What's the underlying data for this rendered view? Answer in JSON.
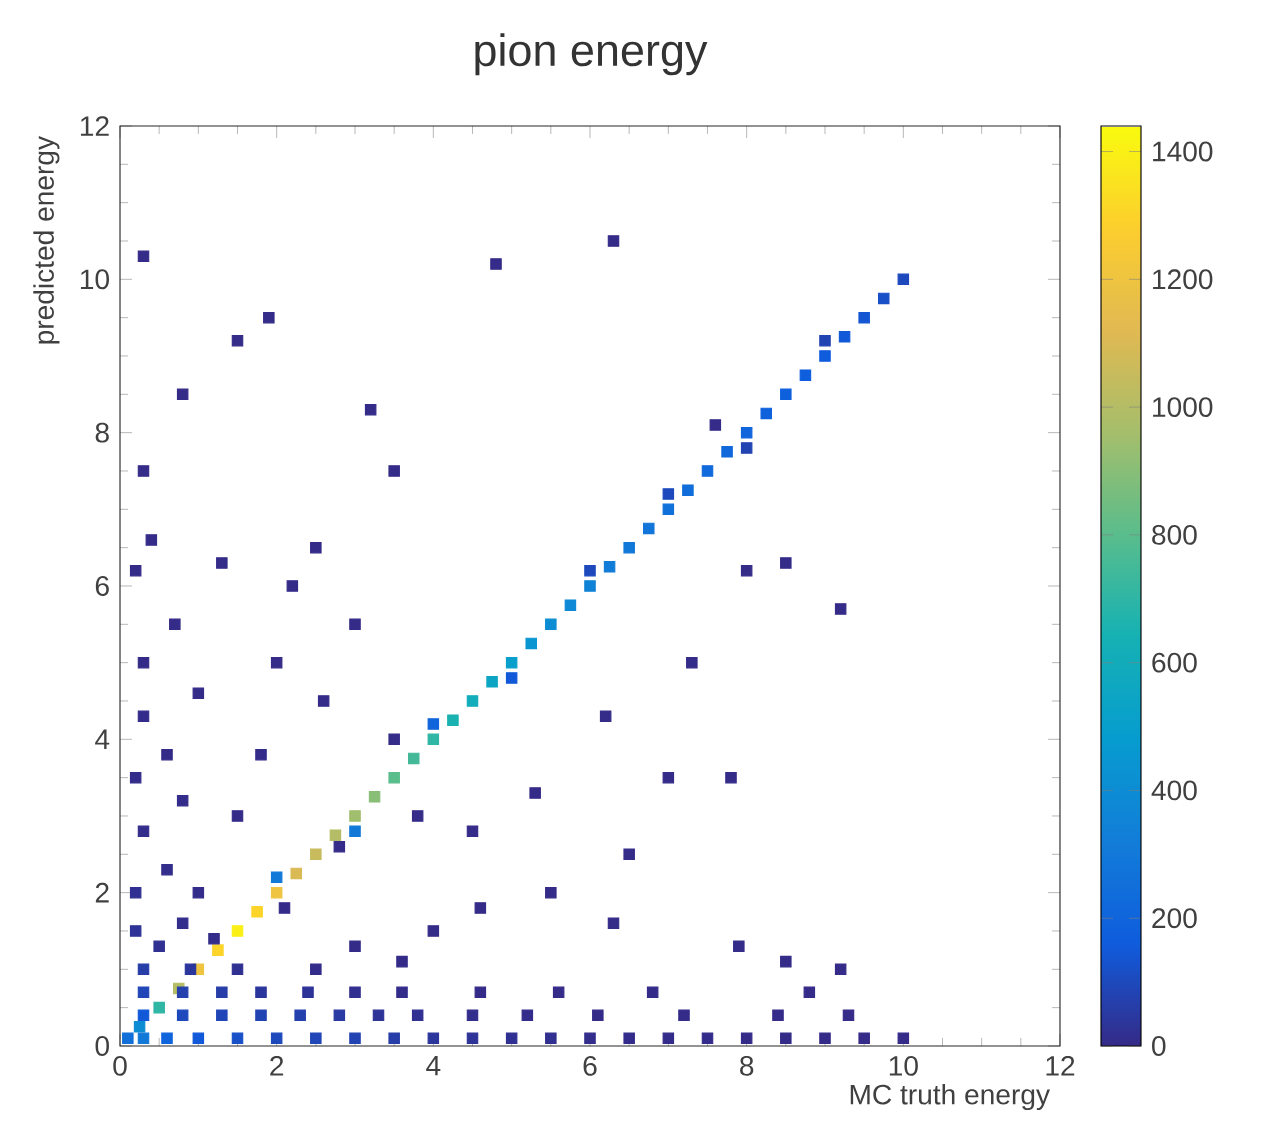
{
  "chart_data": {
    "type": "scatter",
    "title": "pion energy",
    "xlabel": "MC truth energy",
    "ylabel": "predicted energy",
    "xlim": [
      0,
      12
    ],
    "ylim": [
      0,
      12
    ],
    "xticks": [
      0,
      2,
      4,
      6,
      8,
      10,
      12
    ],
    "yticks": [
      0,
      2,
      4,
      6,
      8,
      10,
      12
    ],
    "clim": [
      0,
      1440
    ],
    "cticks": [
      0,
      200,
      400,
      600,
      800,
      1000,
      1200,
      1400
    ],
    "marker": "square",
    "x": [
      0.25,
      0.5,
      0.75,
      1.0,
      1.25,
      1.5,
      1.75,
      2.0,
      2.25,
      2.5,
      2.75,
      3.0,
      3.25,
      3.5,
      3.75,
      4.0,
      4.25,
      4.5,
      4.75,
      5.0,
      5.25,
      5.5,
      5.75,
      6.0,
      6.25,
      6.5,
      6.75,
      7.0,
      7.25,
      7.5,
      7.75,
      8.0,
      8.25,
      8.5,
      8.75,
      9.0,
      9.25,
      9.5,
      9.75,
      10.0,
      2,
      3,
      4,
      5,
      6,
      7,
      8,
      9,
      0.1,
      0.3,
      0.6,
      1.0,
      1.5,
      2.0,
      2.5,
      3.0,
      3.5,
      4.0,
      4.5,
      5.0,
      5.5,
      6.0,
      6.5,
      7.0,
      7.5,
      8.0,
      8.5,
      9.0,
      9.5,
      10.0,
      0.3,
      0.8,
      1.3,
      1.8,
      2.3,
      2.8,
      3.3,
      3.8,
      4.5,
      5.2,
      6.1,
      7.2,
      8.4,
      9.3,
      0.3,
      0.8,
      1.3,
      1.8,
      2.4,
      3.0,
      3.6,
      4.6,
      5.6,
      6.8,
      8.8,
      0.3,
      0.9,
      1.5,
      2.5,
      0.2,
      0.5,
      0.8,
      1.2,
      0.2,
      0.6,
      1.0,
      0.3,
      0.8,
      1.5,
      0.2,
      0.6,
      0.3,
      1.0,
      0.3,
      0.7,
      0.2,
      0.4,
      1.3,
      0.3,
      0.8,
      0.3,
      1.5,
      4.8,
      6.3,
      3.2,
      3.5,
      1.9,
      2.5,
      3.0,
      2.2,
      7.3,
      8.0,
      6.2,
      9.2,
      7.0,
      7.8,
      5.5,
      5.3,
      6.5,
      3.8,
      4.5,
      2.8,
      1.8,
      2.0,
      2.6,
      3.5,
      7.6,
      8.5,
      6.3,
      7.9,
      9.2,
      8.5,
      4.6,
      2.1,
      3.0,
      3.6,
      4.0
    ],
    "values": [
      0.25,
      0.5,
      0.75,
      1.0,
      1.25,
      1.5,
      1.75,
      2.0,
      2.25,
      2.5,
      2.75,
      3.0,
      3.25,
      3.5,
      3.75,
      4.0,
      4.25,
      4.5,
      4.75,
      5.0,
      5.25,
      5.5,
      5.75,
      6.0,
      6.25,
      6.5,
      6.75,
      7.0,
      7.25,
      7.5,
      7.75,
      8.0,
      8.25,
      8.5,
      8.75,
      9.0,
      9.25,
      9.5,
      9.75,
      10.0,
      2.2,
      2.8,
      4.2,
      4.8,
      6.2,
      7.2,
      7.8,
      9.2,
      0.1,
      0.1,
      0.1,
      0.1,
      0.1,
      0.1,
      0.1,
      0.1,
      0.1,
      0.1,
      0.1,
      0.1,
      0.1,
      0.1,
      0.1,
      0.1,
      0.1,
      0.1,
      0.1,
      0.1,
      0.1,
      0.1,
      0.4,
      0.4,
      0.4,
      0.4,
      0.4,
      0.4,
      0.4,
      0.4,
      0.4,
      0.4,
      0.4,
      0.4,
      0.4,
      0.4,
      0.7,
      0.7,
      0.7,
      0.7,
      0.7,
      0.7,
      0.7,
      0.7,
      0.7,
      0.7,
      0.7,
      1.0,
      1.0,
      1.0,
      1.0,
      1.5,
      1.3,
      1.6,
      1.4,
      2.0,
      2.3,
      2.0,
      2.8,
      3.2,
      3.0,
      3.5,
      3.8,
      4.3,
      4.6,
      5.0,
      5.5,
      6.2,
      6.6,
      6.3,
      7.5,
      8.5,
      10.3,
      9.2,
      10.2,
      10.5,
      8.3,
      7.5,
      9.5,
      6.5,
      5.5,
      6.0,
      5.0,
      6.2,
      4.3,
      5.7,
      3.5,
      3.5,
      2.0,
      3.3,
      2.5,
      3.0,
      2.8,
      2.6,
      3.8,
      5.0,
      4.5,
      4.0,
      8.1,
      6.3,
      1.6,
      1.3,
      1.0,
      1.1,
      1.8,
      1.8,
      1.3,
      1.1,
      1.5
    ],
    "cvalues": [
      400,
      700,
      1000,
      1200,
      1300,
      1400,
      1300,
      1200,
      1100,
      1050,
      1000,
      950,
      900,
      800,
      750,
      700,
      650,
      600,
      550,
      500,
      450,
      400,
      380,
      350,
      320,
      300,
      280,
      260,
      240,
      230,
      220,
      200,
      190,
      180,
      170,
      160,
      150,
      140,
      120,
      100,
      300,
      300,
      200,
      150,
      100,
      100,
      80,
      80,
      250,
      300,
      200,
      150,
      120,
      100,
      90,
      80,
      60,
      40,
      30,
      20,
      15,
      10,
      8,
      6,
      5,
      4,
      3,
      3,
      2,
      2,
      150,
      100,
      90,
      80,
      70,
      50,
      30,
      20,
      10,
      5,
      3,
      2,
      2,
      2,
      90,
      70,
      60,
      40,
      30,
      15,
      5,
      3,
      2,
      2,
      2,
      60,
      40,
      20,
      5,
      30,
      20,
      10,
      5,
      20,
      10,
      5,
      10,
      5,
      2,
      8,
      3,
      5,
      2,
      4,
      2,
      3,
      2,
      2,
      2,
      2,
      2,
      2,
      2,
      2,
      2,
      2,
      2,
      2,
      2,
      2,
      2,
      2,
      2,
      2,
      2,
      2,
      2,
      2,
      2,
      2,
      2,
      2,
      2,
      2,
      2,
      2,
      2,
      2,
      2,
      2,
      2,
      2,
      2,
      3,
      3,
      3,
      2
    ]
  }
}
